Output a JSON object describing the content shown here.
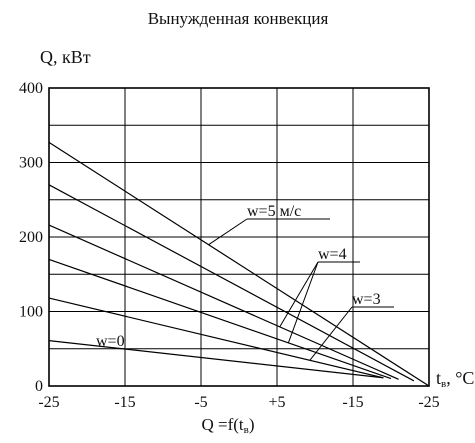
{
  "chart_data": {
    "type": "line",
    "title": "Вынужденная конвекция",
    "ylabel": "Q, кВт",
    "xlabel": "t",
    "xlabel_sub": "в",
    "xlabel_unit": ", °C",
    "formula": {
      "main": "Q =f(t",
      "sub": "в",
      "close": ")"
    },
    "x_tick_labels": [
      "-25",
      "-15",
      "-5",
      "+5",
      "-15",
      "-25"
    ],
    "y_ticks": [
      0,
      100,
      200,
      300,
      400
    ],
    "ylim": [
      0,
      400
    ],
    "grid": true,
    "series": [
      {
        "label": "w=5 м/с",
        "x": [
          -25,
          25
        ],
        "y": [
          327,
          0
        ]
      },
      {
        "label": "",
        "x": [
          -25,
          23
        ],
        "y": [
          270,
          7
        ]
      },
      {
        "label": "w=4",
        "x": [
          -25,
          21
        ],
        "y": [
          216,
          9
        ]
      },
      {
        "label": "",
        "x": [
          -25,
          20
        ],
        "y": [
          170,
          10
        ]
      },
      {
        "label": "w=3",
        "x": [
          -25,
          19
        ],
        "y": [
          118,
          11
        ]
      },
      {
        "label": "w=0",
        "x": [
          -25,
          19
        ],
        "y": [
          61,
          11
        ]
      }
    ],
    "annotations": [
      {
        "text": "w=5 м/с",
        "series": 0
      },
      {
        "text": "w=4",
        "series": 2
      },
      {
        "text": "w=3",
        "series": 4
      },
      {
        "text": "w=0",
        "series": 5
      }
    ]
  }
}
